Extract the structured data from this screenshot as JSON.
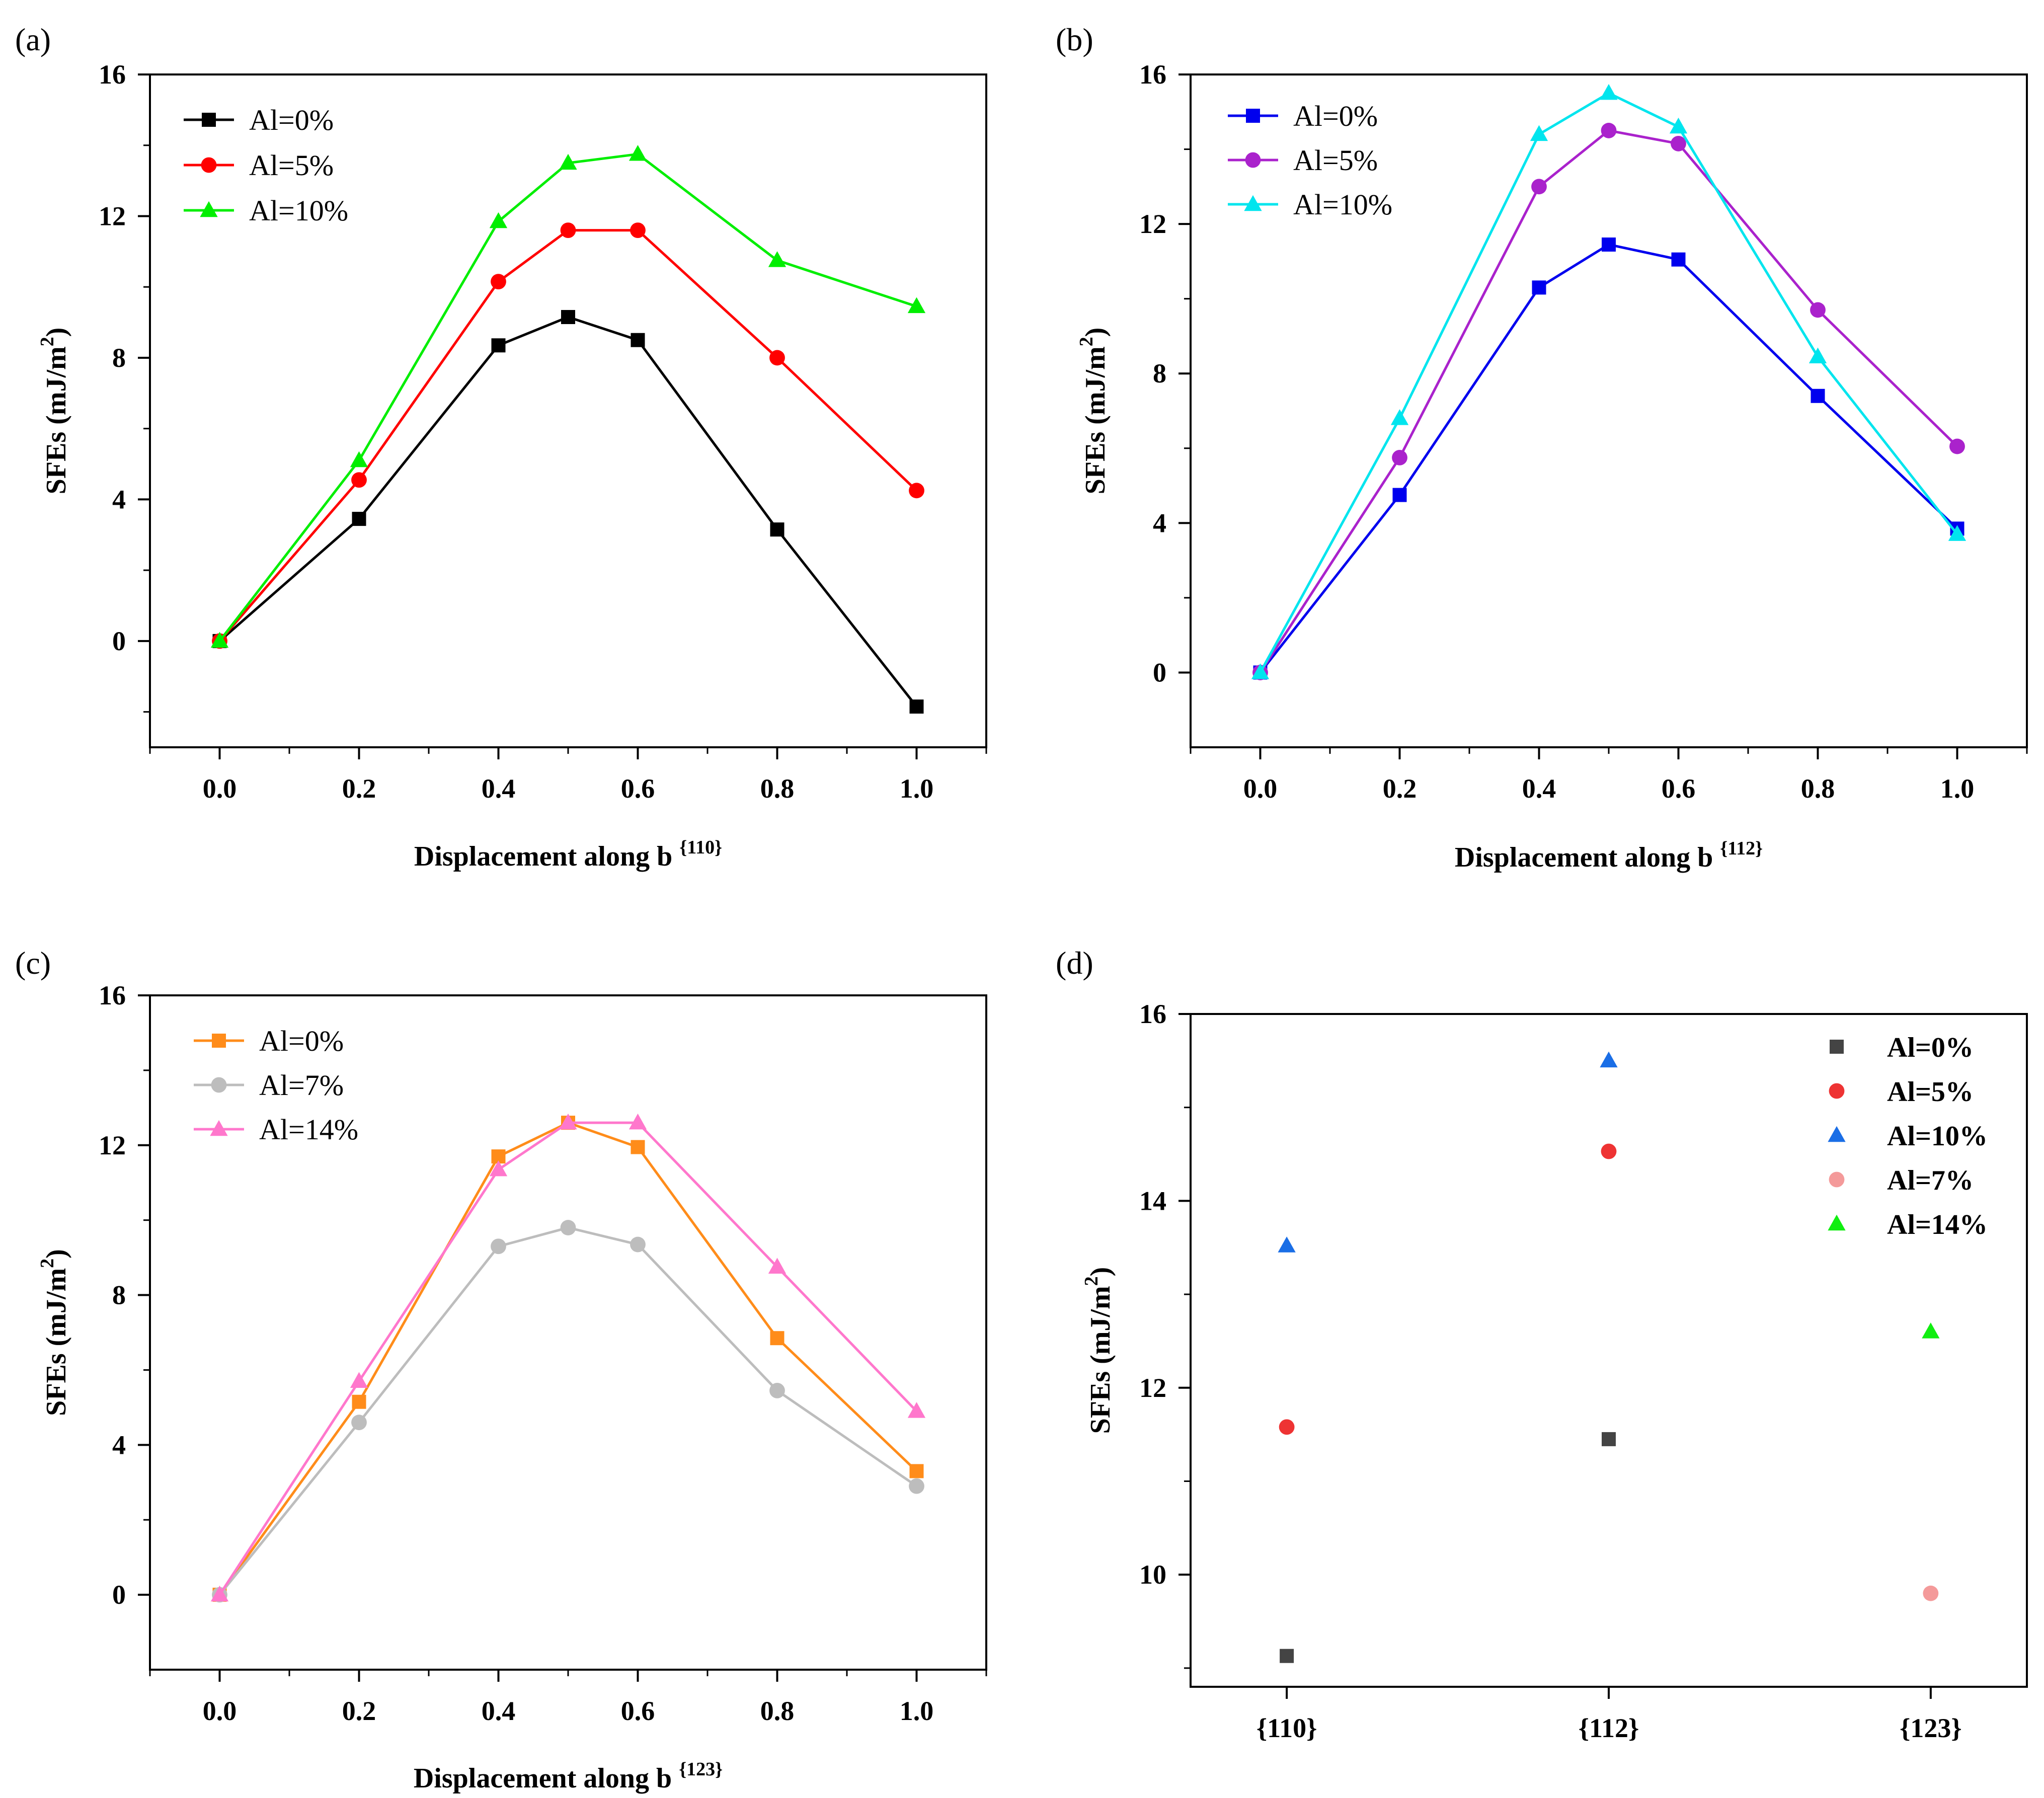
{
  "chart_data": [
    {
      "panel": "(a)",
      "type": "line",
      "x": [
        0.0,
        0.2,
        0.4,
        0.5,
        0.6,
        0.8,
        1.0
      ],
      "xticks": [
        "0.0",
        "0.2",
        "0.4",
        "0.6",
        "0.8",
        "1.0"
      ],
      "yticks": [
        "0",
        "4",
        "8",
        "12",
        "16"
      ],
      "xlim": [
        -0.1,
        1.1
      ],
      "ylim": [
        -3,
        16
      ],
      "xlabel": "Displacement along b",
      "xlabel_sup": "{110}",
      "ylabel": "SFEs (mJ/m",
      "ylabel_sup": "2",
      "ylabel_end": ")",
      "legend_position": "top-left",
      "series": [
        {
          "name": "Al=0%",
          "marker": "square",
          "color": "#000000",
          "values": [
            0,
            3.45,
            8.35,
            9.15,
            8.5,
            3.15,
            -1.85
          ]
        },
        {
          "name": "Al=5%",
          "marker": "circle",
          "color": "#ff0000",
          "values": [
            0,
            4.55,
            10.15,
            11.6,
            11.6,
            8.0,
            4.25
          ]
        },
        {
          "name": "Al=10%",
          "marker": "triangle",
          "color": "#00ee00",
          "values": [
            0,
            5.1,
            11.85,
            13.5,
            13.75,
            10.75,
            9.45
          ]
        }
      ]
    },
    {
      "panel": "(b)",
      "type": "line",
      "x": [
        0.0,
        0.2,
        0.4,
        0.5,
        0.6,
        0.8,
        1.0
      ],
      "xticks": [
        "0.0",
        "0.2",
        "0.4",
        "0.6",
        "0.8",
        "1.0"
      ],
      "yticks": [
        "0",
        "4",
        "8",
        "12",
        "16"
      ],
      "xlim": [
        -0.1,
        1.1
      ],
      "ylim": [
        -2,
        16
      ],
      "xlabel": "Displacement along b",
      "xlabel_sup": "{112}",
      "ylabel": "SFEs (mJ/m",
      "ylabel_sup": "2",
      "ylabel_end": ")",
      "legend_position": "top-left",
      "series": [
        {
          "name": "Al=0%",
          "marker": "square",
          "color": "#0000ee",
          "values": [
            0,
            4.75,
            10.3,
            11.45,
            11.05,
            7.4,
            3.85
          ]
        },
        {
          "name": "Al=5%",
          "marker": "circle",
          "color": "#aa22cc",
          "values": [
            0,
            5.75,
            13.0,
            14.5,
            14.15,
            9.7,
            6.05
          ]
        },
        {
          "name": "Al=10%",
          "marker": "triangle",
          "color": "#00e5ee",
          "values": [
            0,
            6.8,
            14.4,
            15.5,
            14.6,
            8.45,
            3.7
          ]
        }
      ]
    },
    {
      "panel": "(c)",
      "type": "line",
      "x": [
        0.0,
        0.2,
        0.4,
        0.5,
        0.6,
        0.8,
        1.0
      ],
      "xticks": [
        "0.0",
        "0.2",
        "0.4",
        "0.6",
        "0.8",
        "1.0"
      ],
      "yticks": [
        "0",
        "4",
        "8",
        "12",
        "16"
      ],
      "xlim": [
        -0.1,
        1.1
      ],
      "ylim": [
        -2,
        16
      ],
      "xlabel": "Displacement along b",
      "xlabel_sup": "{123}",
      "ylabel": "SFEs (mJ/m",
      "ylabel_sup": "2",
      "ylabel_end": ")",
      "legend_position": "top-left",
      "series": [
        {
          "name": "Al=0%",
          "marker": "square",
          "color": "#ff8c1a",
          "values": [
            0,
            5.15,
            11.7,
            12.6,
            11.95,
            6.85,
            3.3
          ]
        },
        {
          "name": "Al=7%",
          "marker": "circle",
          "color": "#bdbdbd",
          "values": [
            0,
            4.6,
            9.3,
            9.8,
            9.35,
            5.45,
            2.9
          ]
        },
        {
          "name": "Al=14%",
          "marker": "triangle",
          "color": "#ff77cc",
          "values": [
            0,
            5.7,
            11.35,
            12.6,
            12.6,
            8.75,
            4.9
          ]
        }
      ]
    },
    {
      "panel": "(d)",
      "type": "scatter",
      "categories": [
        "{110}",
        "{112}",
        "{123}"
      ],
      "yticks": [
        "10",
        "12",
        "14",
        "16"
      ],
      "ylim": [
        8.8,
        16
      ],
      "ylabel": "SFEs (mJ/m",
      "ylabel_sup": "2",
      "ylabel_end": ")",
      "legend_position": "top-right",
      "series": [
        {
          "name": "Al=0%",
          "marker": "square",
          "color": "#444444",
          "points": [
            {
              "cat": 0,
              "y": 9.13
            },
            {
              "cat": 1,
              "y": 11.45
            }
          ]
        },
        {
          "name": "Al=5%",
          "marker": "circle",
          "color": "#ee3333",
          "points": [
            {
              "cat": 0,
              "y": 11.58
            },
            {
              "cat": 1,
              "y": 14.53
            }
          ]
        },
        {
          "name": "Al=10%",
          "marker": "triangle",
          "color": "#1a6ee6",
          "points": [
            {
              "cat": 0,
              "y": 13.52
            },
            {
              "cat": 1,
              "y": 15.5
            }
          ]
        },
        {
          "name": "Al=7%",
          "marker": "circle",
          "color": "#f49a9a",
          "points": [
            {
              "cat": 2,
              "y": 9.8
            }
          ]
        },
        {
          "name": "Al=14%",
          "marker": "triangle",
          "color": "#11ee11",
          "points": [
            {
              "cat": 2,
              "y": 12.6
            }
          ]
        }
      ]
    }
  ]
}
